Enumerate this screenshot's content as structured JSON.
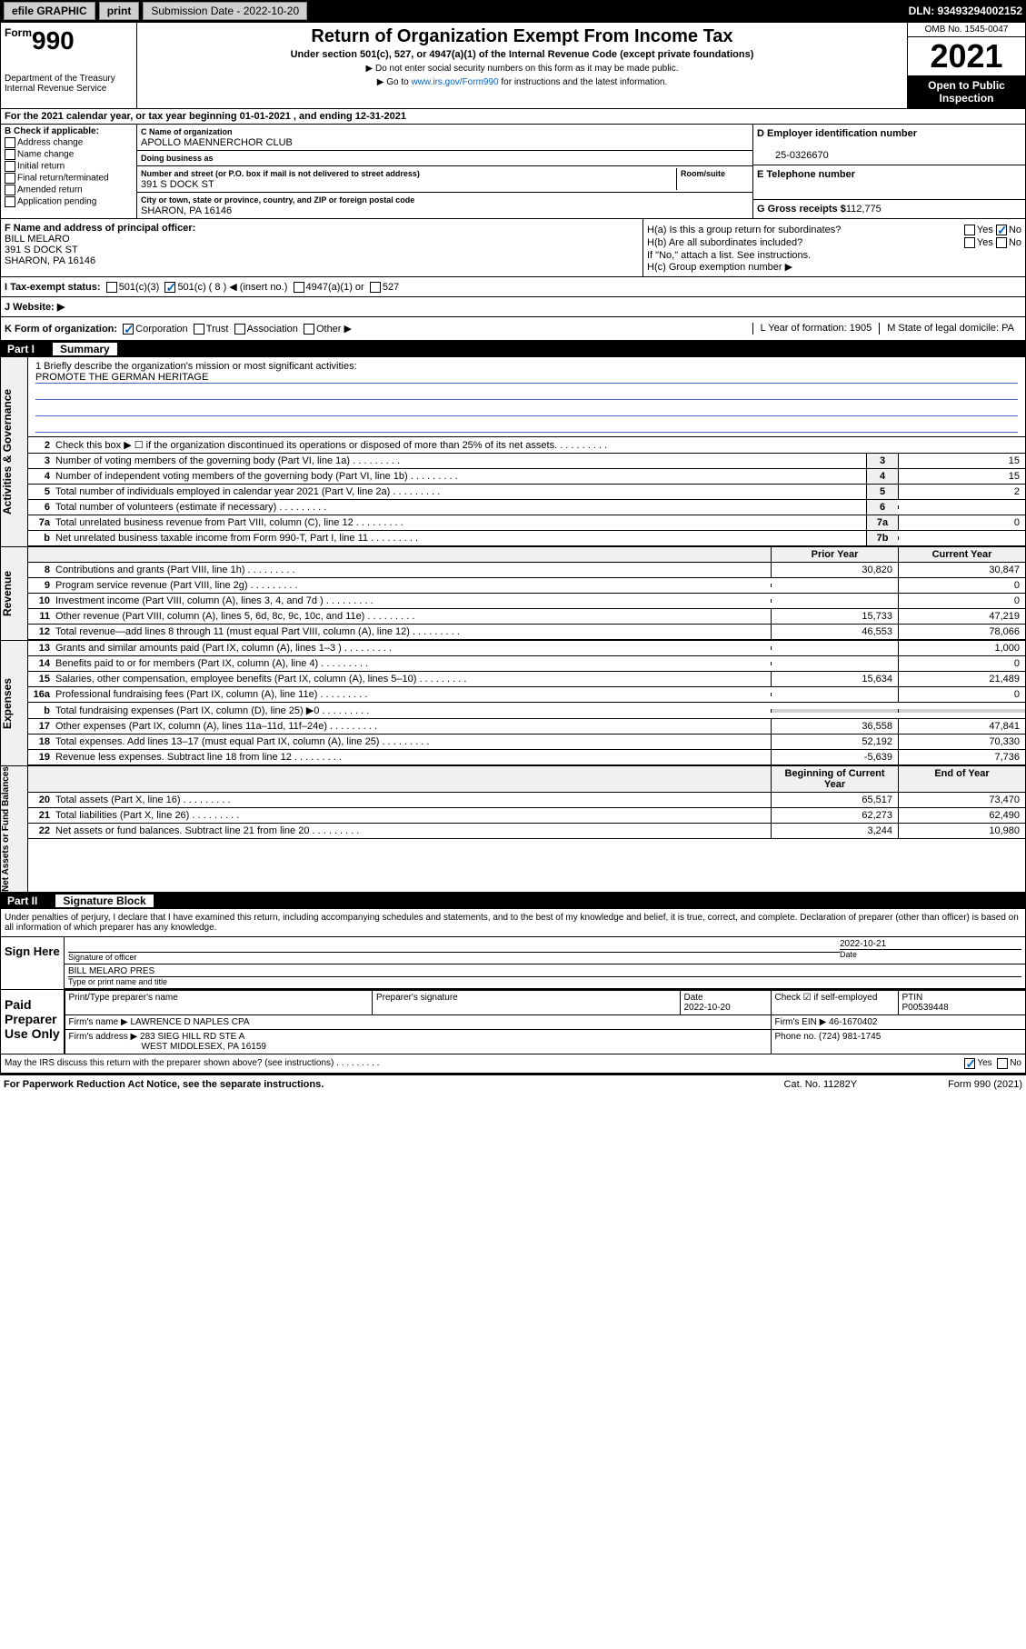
{
  "topbar": {
    "efile": "efile GRAPHIC",
    "print": "print",
    "sub_date_label": "Submission Date - 2022-10-20",
    "dln": "DLN: 93493294002152"
  },
  "header": {
    "form_word": "Form",
    "form_num": "990",
    "dept": "Department of the Treasury",
    "irs": "Internal Revenue Service",
    "title": "Return of Organization Exempt From Income Tax",
    "sub": "Under section 501(c), 527, or 4947(a)(1) of the Internal Revenue Code (except private foundations)",
    "note1": "▶ Do not enter social security numbers on this form as it may be made public.",
    "note2_pre": "▶ Go to ",
    "note2_link": "www.irs.gov/Form990",
    "note2_post": " for instructions and the latest information.",
    "omb": "OMB No. 1545-0047",
    "year": "2021",
    "open": "Open to Public Inspection"
  },
  "year_row": "For the 2021 calendar year, or tax year beginning 01-01-2021   , and ending 12-31-2021",
  "box_b": {
    "label": "B Check if applicable:",
    "items": [
      "Address change",
      "Name change",
      "Initial return",
      "Final return/terminated",
      "Amended return",
      "Application pending"
    ]
  },
  "box_c": {
    "name_label": "C Name of organization",
    "name": "APOLLO MAENNERCHOR CLUB",
    "dba_label": "Doing business as",
    "addr_label": "Number and street (or P.O. box if mail is not delivered to street address)",
    "room_label": "Room/suite",
    "addr": "391 S DOCK ST",
    "city_label": "City or town, state or province, country, and ZIP or foreign postal code",
    "city": "SHARON, PA  16146"
  },
  "box_d": {
    "label": "D Employer identification number",
    "val": "25-0326670"
  },
  "box_e": {
    "label": "E Telephone number",
    "val": ""
  },
  "box_g": {
    "label": "G Gross receipts $",
    "val": "112,775"
  },
  "box_f": {
    "label": "F  Name and address of principal officer:",
    "name": "BILL MELARO",
    "addr1": "391 S DOCK ST",
    "addr2": "SHARON, PA  16146"
  },
  "box_h": {
    "a_label": "H(a)  Is this a group return for subordinates?",
    "a_yes": "Yes",
    "a_no": "No",
    "b_label": "H(b)  Are all subordinates included?",
    "b_yes": "Yes",
    "b_no": "No",
    "note": "If \"No,\" attach a list. See instructions.",
    "c_label": "H(c)  Group exemption number ▶"
  },
  "row_i": {
    "label": "I   Tax-exempt status:",
    "opts": [
      "501(c)(3)",
      "501(c) ( 8 ) ◀ (insert no.)",
      "4947(a)(1) or",
      "527"
    ]
  },
  "row_j": {
    "label": "J   Website: ▶"
  },
  "row_k": {
    "label": "K Form of organization:",
    "opts": [
      "Corporation",
      "Trust",
      "Association",
      "Other ▶"
    ],
    "l": "L Year of formation: 1905",
    "m": "M State of legal domicile: PA"
  },
  "part1": {
    "num": "Part I",
    "title": "Summary"
  },
  "mission": {
    "q": "1  Briefly describe the organization's mission or most significant activities:",
    "a": "PROMOTE THE GERMAN HERITAGE"
  },
  "gov_rows": [
    {
      "n": "2",
      "d": "Check this box ▶ ☐  if the organization discontinued its operations or disposed of more than 25% of its net assets."
    },
    {
      "n": "3",
      "d": "Number of voting members of the governing body (Part VI, line 1a)",
      "bn": "3",
      "v": "15"
    },
    {
      "n": "4",
      "d": "Number of independent voting members of the governing body (Part VI, line 1b)",
      "bn": "4",
      "v": "15"
    },
    {
      "n": "5",
      "d": "Total number of individuals employed in calendar year 2021 (Part V, line 2a)",
      "bn": "5",
      "v": "2"
    },
    {
      "n": "6",
      "d": "Total number of volunteers (estimate if necessary)",
      "bn": "6",
      "v": ""
    },
    {
      "n": "7a",
      "d": "Total unrelated business revenue from Part VIII, column (C), line 12",
      "bn": "7a",
      "v": "0"
    },
    {
      "n": "b",
      "d": "Net unrelated business taxable income from Form 990-T, Part I, line 11",
      "bn": "7b",
      "v": ""
    }
  ],
  "col_headers": {
    "prior": "Prior Year",
    "current": "Current Year"
  },
  "rev_rows": [
    {
      "n": "8",
      "d": "Contributions and grants (Part VIII, line 1h)",
      "p": "30,820",
      "c": "30,847"
    },
    {
      "n": "9",
      "d": "Program service revenue (Part VIII, line 2g)",
      "p": "",
      "c": "0"
    },
    {
      "n": "10",
      "d": "Investment income (Part VIII, column (A), lines 3, 4, and 7d )",
      "p": "",
      "c": "0"
    },
    {
      "n": "11",
      "d": "Other revenue (Part VIII, column (A), lines 5, 6d, 8c, 9c, 10c, and 11e)",
      "p": "15,733",
      "c": "47,219"
    },
    {
      "n": "12",
      "d": "Total revenue—add lines 8 through 11 (must equal Part VIII, column (A), line 12)",
      "p": "46,553",
      "c": "78,066"
    }
  ],
  "exp_rows": [
    {
      "n": "13",
      "d": "Grants and similar amounts paid (Part IX, column (A), lines 1–3 )",
      "p": "",
      "c": "1,000"
    },
    {
      "n": "14",
      "d": "Benefits paid to or for members (Part IX, column (A), line 4)",
      "p": "",
      "c": "0"
    },
    {
      "n": "15",
      "d": "Salaries, other compensation, employee benefits (Part IX, column (A), lines 5–10)",
      "p": "15,634",
      "c": "21,489"
    },
    {
      "n": "16a",
      "d": "Professional fundraising fees (Part IX, column (A), line 11e)",
      "p": "",
      "c": "0"
    },
    {
      "n": "b",
      "d": "Total fundraising expenses (Part IX, column (D), line 25) ▶0",
      "p": "shaded",
      "c": "shaded"
    },
    {
      "n": "17",
      "d": "Other expenses (Part IX, column (A), lines 11a–11d, 11f–24e)",
      "p": "36,558",
      "c": "47,841"
    },
    {
      "n": "18",
      "d": "Total expenses. Add lines 13–17 (must equal Part IX, column (A), line 25)",
      "p": "52,192",
      "c": "70,330"
    },
    {
      "n": "19",
      "d": "Revenue less expenses. Subtract line 18 from line 12",
      "p": "-5,639",
      "c": "7,736"
    }
  ],
  "net_headers": {
    "beg": "Beginning of Current Year",
    "end": "End of Year"
  },
  "net_rows": [
    {
      "n": "20",
      "d": "Total assets (Part X, line 16)",
      "p": "65,517",
      "c": "73,470"
    },
    {
      "n": "21",
      "d": "Total liabilities (Part X, line 26)",
      "p": "62,273",
      "c": "62,490"
    },
    {
      "n": "22",
      "d": "Net assets or fund balances. Subtract line 21 from line 20",
      "p": "3,244",
      "c": "10,980"
    }
  ],
  "vtabs": {
    "gov": "Activities & Governance",
    "rev": "Revenue",
    "exp": "Expenses",
    "net": "Net Assets or Fund Balances"
  },
  "part2": {
    "num": "Part II",
    "title": "Signature Block"
  },
  "sig": {
    "decl": "Under penalties of perjury, I declare that I have examined this return, including accompanying schedules and statements, and to the best of my knowledge and belief, it is true, correct, and complete. Declaration of preparer (other than officer) is based on all information of which preparer has any knowledge.",
    "sign_here": "Sign Here",
    "sig_officer": "Signature of officer",
    "date_label": "Date",
    "date": "2022-10-21",
    "name": "BILL MELARO  PRES",
    "name_label": "Type or print name and title",
    "paid": "Paid Preparer Use Only",
    "prep_name_label": "Print/Type preparer's name",
    "prep_sig_label": "Preparer's signature",
    "prep_date_label": "Date",
    "prep_date": "2022-10-20",
    "check_self": "Check ☑ if self-employed",
    "ptin_label": "PTIN",
    "ptin": "P00539448",
    "firm_name_label": "Firm's name  ▶",
    "firm_name": "LAWRENCE D NAPLES CPA",
    "firm_ein_label": "Firm's EIN ▶",
    "firm_ein": "46-1670402",
    "firm_addr_label": "Firm's address ▶",
    "firm_addr1": "283 SIEG HILL RD STE A",
    "firm_addr2": "WEST MIDDLESEX, PA  16159",
    "phone_label": "Phone no.",
    "phone": "(724) 981-1745"
  },
  "may_irs": "May the IRS discuss this return with the preparer shown above? (see instructions)",
  "may_yes": "Yes",
  "may_no": "No",
  "footer": {
    "left": "For Paperwork Reduction Act Notice, see the separate instructions.",
    "mid": "Cat. No. 11282Y",
    "right": "Form 990 (2021)"
  }
}
